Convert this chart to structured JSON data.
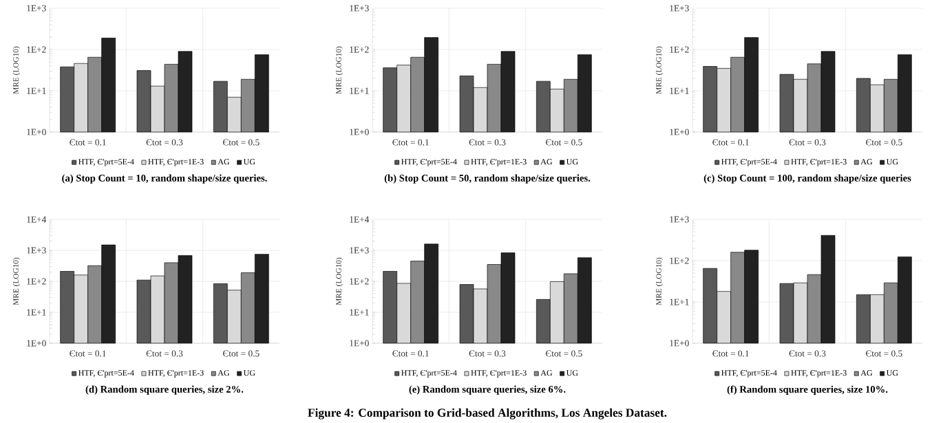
{
  "chart_data": [
    {
      "type": "bar",
      "title": "(a) Stop Count = 10, random shape/size queries.",
      "ylabel": "MRE (LOG10)",
      "categories": [
        "Єtot = 0.1",
        "Єtot = 0.3",
        "Єtot = 0.5"
      ],
      "log": true,
      "grid": true,
      "legend": "bottom",
      "ylim": [
        1,
        1000
      ],
      "yticks": [
        {
          "value": 1,
          "label": "1E+0"
        },
        {
          "value": 10,
          "label": "1E+1"
        },
        {
          "value": 100,
          "label": "1E+2"
        },
        {
          "value": 1000,
          "label": "1E+3"
        }
      ],
      "series": [
        {
          "name": "HTF, Є'prt=5E-4",
          "color": "#595959",
          "values": [
            38,
            31,
            17
          ]
        },
        {
          "name": "HTF, Є'prt=1E-3",
          "color": "#d9d9d9",
          "values": [
            46,
            13,
            7
          ]
        },
        {
          "name": "AG",
          "color": "#898989",
          "values": [
            65,
            44,
            19
          ]
        },
        {
          "name": "UG",
          "color": "#222222",
          "values": [
            190,
            90,
            75
          ]
        }
      ]
    },
    {
      "type": "bar",
      "title": "(b) Stop Count = 50, random shape/size queries.",
      "ylabel": "MRE (LOG10)",
      "categories": [
        "Єtot = 0.1",
        "Єtot = 0.3",
        "Єtot = 0.5"
      ],
      "log": true,
      "grid": true,
      "legend": "bottom",
      "ylim": [
        1,
        1000
      ],
      "yticks": [
        {
          "value": 1,
          "label": "1E+0"
        },
        {
          "value": 10,
          "label": "1E+1"
        },
        {
          "value": 100,
          "label": "1E+2"
        },
        {
          "value": 1000,
          "label": "1E+3"
        }
      ],
      "series": [
        {
          "name": "HTF, Є'prt=5E-4",
          "color": "#595959",
          "values": [
            36,
            23,
            17
          ]
        },
        {
          "name": "HTF, Є'prt=1E-3",
          "color": "#d9d9d9",
          "values": [
            42,
            12,
            11
          ]
        },
        {
          "name": "AG",
          "color": "#898989",
          "values": [
            65,
            44,
            19
          ]
        },
        {
          "name": "UG",
          "color": "#222222",
          "values": [
            195,
            90,
            75
          ]
        }
      ]
    },
    {
      "type": "bar",
      "title": "(c) Stop Count = 100, random shape/size queries",
      "ylabel": "MRE (LOG10)",
      "categories": [
        "Єtot = 0.1",
        "Єtot = 0.3",
        "Єtot = 0.5"
      ],
      "log": true,
      "grid": true,
      "legend": "bottom",
      "ylim": [
        1,
        1000
      ],
      "yticks": [
        {
          "value": 1,
          "label": "1E+0"
        },
        {
          "value": 10,
          "label": "1E+1"
        },
        {
          "value": 100,
          "label": "1E+2"
        },
        {
          "value": 1000,
          "label": "1E+3"
        }
      ],
      "series": [
        {
          "name": "HTF, Є'prt=5E-4",
          "color": "#595959",
          "values": [
            39,
            25,
            20
          ]
        },
        {
          "name": "HTF, Є'prt=1E-3",
          "color": "#d9d9d9",
          "values": [
            35,
            19,
            14
          ]
        },
        {
          "name": "AG",
          "color": "#898989",
          "values": [
            65,
            45,
            19
          ]
        },
        {
          "name": "UG",
          "color": "#222222",
          "values": [
            195,
            90,
            75
          ]
        }
      ]
    },
    {
      "type": "bar",
      "title": "(d) Random square queries, size 2%.",
      "ylabel": "MRE (LOG10)",
      "categories": [
        "Єtot = 0.1",
        "Єtot = 0.3",
        "Єtot = 0.5"
      ],
      "log": true,
      "grid": true,
      "legend": "bottom",
      "ylim": [
        1,
        10000
      ],
      "yticks": [
        {
          "value": 1,
          "label": "1E+0"
        },
        {
          "value": 10,
          "label": "1E+1"
        },
        {
          "value": 100,
          "label": "1E+2"
        },
        {
          "value": 1000,
          "label": "1E+3"
        },
        {
          "value": 10000,
          "label": "1E+4"
        }
      ],
      "series": [
        {
          "name": "HTF, Є'prt=5E-4",
          "color": "#595959",
          "values": [
            210,
            110,
            84
          ]
        },
        {
          "name": "HTF, Є'prt=1E-3",
          "color": "#d9d9d9",
          "values": [
            160,
            150,
            52
          ]
        },
        {
          "name": "AG",
          "color": "#898989",
          "values": [
            320,
            400,
            190
          ]
        },
        {
          "name": "UG",
          "color": "#222222",
          "values": [
            1500,
            680,
            750
          ]
        }
      ]
    },
    {
      "type": "bar",
      "title": "(e) Random square queries, size 6%.",
      "ylabel": "MRE (LOG10)",
      "categories": [
        "Єtot = 0.1",
        "Єtot = 0.3",
        "Єtot = 0.5"
      ],
      "log": true,
      "grid": true,
      "legend": "bottom",
      "ylim": [
        1,
        10000
      ],
      "yticks": [
        {
          "value": 1,
          "label": "1E+0"
        },
        {
          "value": 10,
          "label": "1E+1"
        },
        {
          "value": 100,
          "label": "1E+2"
        },
        {
          "value": 1000,
          "label": "1E+3"
        },
        {
          "value": 10000,
          "label": "1E+4"
        }
      ],
      "annotations": [
        "Figure 4: Comparison to Grid-based Algorithms, Los Angeles Dataset."
      ],
      "series": [
        {
          "name": "HTF, Є'prt=5E-4",
          "color": "#595959",
          "values": [
            210,
            79,
            26
          ]
        },
        {
          "name": "HTF, Є'prt=1E-3",
          "color": "#d9d9d9",
          "values": [
            86,
            57,
            98
          ]
        },
        {
          "name": "AG",
          "color": "#898989",
          "values": [
            450,
            350,
            176
          ]
        },
        {
          "name": "UG",
          "color": "#222222",
          "values": [
            1600,
            840,
            580
          ]
        }
      ]
    },
    {
      "type": "bar",
      "title": "(f) Random square queries, size 10%.",
      "ylabel": "MRE (LOG10)",
      "categories": [
        "Єtot = 0.1",
        "Єtot = 0.3",
        "Єtot = 0.5"
      ],
      "log": true,
      "grid": true,
      "legend": "bottom",
      "ylim": [
        1,
        1000
      ],
      "yticks": [
        {
          "value": 1,
          "label": "1E+0"
        },
        {
          "value": 10,
          "label": "1E+1"
        },
        {
          "value": 100,
          "label": "1E+2"
        },
        {
          "value": 1000,
          "label": "1E+3"
        }
      ],
      "series": [
        {
          "name": "HTF, Є'prt=5E-4",
          "color": "#595959",
          "values": [
            65,
            28,
            15
          ]
        },
        {
          "name": "HTF, Є'prt=1E-3",
          "color": "#d9d9d9",
          "values": [
            18,
            29,
            15
          ]
        },
        {
          "name": "AG",
          "color": "#898989",
          "values": [
            160,
            46,
            29
          ]
        },
        {
          "name": "UG",
          "color": "#222222",
          "values": [
            180,
            410,
            124
          ]
        }
      ]
    }
  ]
}
